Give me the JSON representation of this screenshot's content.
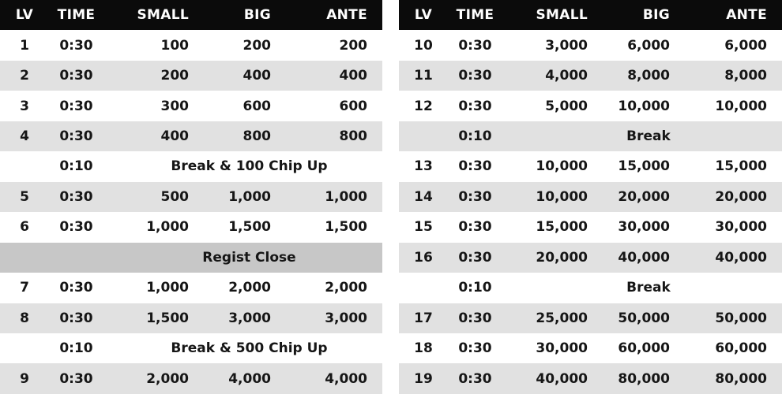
{
  "colors": {
    "header_bg": "#0b0b0b",
    "header_text": "#ffffff",
    "row_white": "#ffffff",
    "row_stripe_gray": "#e1e1e1",
    "regist_close_gray": "#c7c7c7",
    "text": "#161616"
  },
  "chart_data": [
    {
      "type": "table",
      "columns": [
        "LV",
        "TIME",
        "SMALL",
        "BIG",
        "ANTE"
      ],
      "rows": [
        {
          "kind": "level",
          "shade": "white",
          "cells": [
            "1",
            "0:30",
            "100",
            "200",
            "200"
          ]
        },
        {
          "kind": "level",
          "shade": "gray",
          "cells": [
            "2",
            "0:30",
            "200",
            "400",
            "400"
          ]
        },
        {
          "kind": "level",
          "shade": "white",
          "cells": [
            "3",
            "0:30",
            "300",
            "600",
            "600"
          ]
        },
        {
          "kind": "level",
          "shade": "gray",
          "cells": [
            "4",
            "0:30",
            "400",
            "800",
            "800"
          ]
        },
        {
          "kind": "break",
          "shade": "white",
          "time": "0:10",
          "label": "Break & 100 Chip Up"
        },
        {
          "kind": "level",
          "shade": "gray",
          "cells": [
            "5",
            "0:30",
            "500",
            "1,000",
            "1,000"
          ]
        },
        {
          "kind": "level",
          "shade": "white",
          "cells": [
            "6",
            "0:30",
            "1,000",
            "1,500",
            "1,500"
          ]
        },
        {
          "kind": "notice",
          "shade": "dark",
          "label": "Regist Close"
        },
        {
          "kind": "level",
          "shade": "white",
          "cells": [
            "7",
            "0:30",
            "1,000",
            "2,000",
            "2,000"
          ]
        },
        {
          "kind": "level",
          "shade": "gray",
          "cells": [
            "8",
            "0:30",
            "1,500",
            "3,000",
            "3,000"
          ]
        },
        {
          "kind": "break",
          "shade": "white",
          "time": "0:10",
          "label": "Break & 500 Chip Up"
        },
        {
          "kind": "level",
          "shade": "gray",
          "cells": [
            "9",
            "0:30",
            "2,000",
            "4,000",
            "4,000"
          ]
        }
      ]
    },
    {
      "type": "table",
      "columns": [
        "LV",
        "TIME",
        "SMALL",
        "BIG",
        "ANTE"
      ],
      "rows": [
        {
          "kind": "level",
          "shade": "white",
          "cells": [
            "10",
            "0:30",
            "3,000",
            "6,000",
            "6,000"
          ]
        },
        {
          "kind": "level",
          "shade": "gray",
          "cells": [
            "11",
            "0:30",
            "4,000",
            "8,000",
            "8,000"
          ]
        },
        {
          "kind": "level",
          "shade": "white",
          "cells": [
            "12",
            "0:30",
            "5,000",
            "10,000",
            "10,000"
          ]
        },
        {
          "kind": "break",
          "shade": "gray",
          "time": "0:10",
          "label": "Break"
        },
        {
          "kind": "level",
          "shade": "white",
          "cells": [
            "13",
            "0:30",
            "10,000",
            "15,000",
            "15,000"
          ]
        },
        {
          "kind": "level",
          "shade": "gray",
          "cells": [
            "14",
            "0:30",
            "10,000",
            "20,000",
            "20,000"
          ]
        },
        {
          "kind": "level",
          "shade": "white",
          "cells": [
            "15",
            "0:30",
            "15,000",
            "30,000",
            "30,000"
          ]
        },
        {
          "kind": "level",
          "shade": "gray",
          "cells": [
            "16",
            "0:30",
            "20,000",
            "40,000",
            "40,000"
          ]
        },
        {
          "kind": "break",
          "shade": "white",
          "time": "0:10",
          "label": "Break"
        },
        {
          "kind": "level",
          "shade": "gray",
          "cells": [
            "17",
            "0:30",
            "25,000",
            "50,000",
            "50,000"
          ]
        },
        {
          "kind": "level",
          "shade": "white",
          "cells": [
            "18",
            "0:30",
            "30,000",
            "60,000",
            "60,000"
          ]
        },
        {
          "kind": "level",
          "shade": "gray",
          "cells": [
            "19",
            "0:30",
            "40,000",
            "80,000",
            "80,000"
          ]
        }
      ]
    }
  ]
}
